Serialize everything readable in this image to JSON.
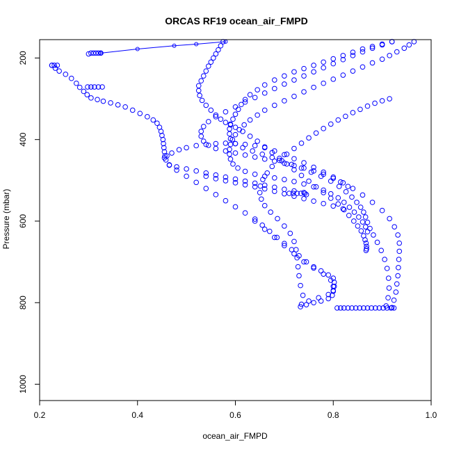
{
  "chart_data": {
    "type": "scatter",
    "title": "ORCAS RF19 ocean_air_FMPD",
    "xlabel": "ocean_air_FMPD",
    "ylabel": "Pressure (mbar)",
    "xlim": [
      0.2,
      1.0
    ],
    "ylim": [
      1040,
      155
    ],
    "y_axis_inverted": true,
    "x_ticks": [
      0.2,
      0.4,
      0.6,
      0.8,
      1.0
    ],
    "x_tick_labels": [
      "0.2",
      "0.4",
      "0.6",
      "0.8",
      "1.0"
    ],
    "y_ticks": [
      200,
      400,
      600,
      800,
      1000
    ],
    "y_tick_labels": [
      "200",
      "400",
      "600",
      "800",
      "1000"
    ],
    "grid": false,
    "legend": "none",
    "marker": "open-circle",
    "color": "#0000ff",
    "series": [
      {
        "style": "points",
        "x": [
          0.225,
          0.232,
          0.24,
          0.253,
          0.265,
          0.275,
          0.282,
          0.29,
          0.297,
          0.305,
          0.318,
          0.33,
          0.345,
          0.36,
          0.375,
          0.39,
          0.405,
          0.42,
          0.432,
          0.44,
          0.445,
          0.448,
          0.45,
          0.452,
          0.453,
          0.454,
          0.455,
          0.456,
          0.458,
          0.465,
          0.48,
          0.5,
          0.52,
          0.54,
          0.56,
          0.58,
          0.6,
          0.62,
          0.64,
          0.655,
          0.67,
          0.685,
          0.7,
          0.715,
          0.73,
          0.745,
          0.76,
          0.775,
          0.79,
          0.8,
          0.802,
          0.802,
          0.8,
          0.79,
          0.77,
          0.75,
          0.735
        ],
        "y": [
          218,
          225,
          232,
          240,
          250,
          262,
          272,
          282,
          290,
          298,
          302,
          306,
          310,
          315,
          320,
          328,
          336,
          344,
          352,
          360,
          370,
          380,
          390,
          400,
          410,
          420,
          430,
          440,
          450,
          462,
          475,
          490,
          505,
          520,
          535,
          550,
          565,
          580,
          595,
          610,
          625,
          640,
          655,
          670,
          685,
          700,
          712,
          722,
          732,
          740,
          750,
          760,
          770,
          780,
          788,
          796,
          804
        ]
      },
      {
        "style": "points",
        "x": [
          0.455,
          0.46,
          0.47,
          0.485,
          0.5,
          0.52,
          0.54,
          0.56,
          0.58,
          0.6,
          0.62,
          0.64,
          0.66,
          0.68,
          0.7,
          0.72,
          0.74,
          0.76,
          0.78,
          0.8,
          0.815,
          0.83
        ],
        "y": [
          445,
          440,
          433,
          425,
          420,
          415,
          412,
          410,
          409,
          410,
          412,
          415,
          420,
          428,
          437,
          447,
          457,
          468,
          480,
          492,
          504,
          515
        ]
      },
      {
        "style": "points",
        "x": [
          0.575,
          0.57,
          0.565,
          0.56,
          0.555,
          0.55,
          0.545,
          0.54,
          0.535,
          0.53,
          0.525,
          0.525,
          0.527,
          0.532,
          0.54,
          0.55,
          0.56,
          0.57,
          0.58,
          0.59,
          0.6,
          0.615,
          0.63,
          0.645,
          0.66,
          0.675,
          0.69,
          0.705,
          0.72,
          0.735,
          0.75,
          0.765,
          0.78,
          0.795,
          0.81,
          0.822,
          0.832,
          0.842,
          0.85,
          0.857,
          0.862,
          0.865,
          0.867,
          0.868,
          0.868,
          0.867
        ],
        "y": [
          160,
          170,
          180,
          190,
          200,
          210,
          220,
          232,
          244,
          256,
          268,
          280,
          292,
          304,
          316,
          328,
          340,
          350,
          358,
          364,
          370,
          380,
          392,
          404,
          418,
          432,
          446,
          460,
          474,
          488,
          502,
          516,
          530,
          544,
          558,
          572,
          586,
          600,
          612,
          624,
          636,
          646,
          654,
          662,
          668,
          672
        ]
      },
      {
        "style": "points",
        "x": [
          0.965,
          0.955,
          0.945,
          0.93,
          0.915,
          0.9,
          0.88,
          0.86,
          0.84,
          0.82,
          0.8,
          0.78,
          0.76,
          0.74,
          0.72,
          0.7,
          0.68,
          0.66,
          0.645,
          0.63,
          0.618,
          0.608,
          0.6,
          0.594,
          0.59,
          0.588,
          0.588,
          0.59,
          0.595,
          0.605,
          0.62,
          0.64,
          0.66,
          0.68,
          0.7,
          0.72,
          0.74,
          0.76,
          0.78,
          0.795,
          0.81,
          0.822,
          0.833,
          0.843,
          0.852,
          0.86,
          0.866,
          0.87
        ],
        "y": [
          160,
          168,
          176,
          185,
          194,
          203,
          212,
          222,
          232,
          242,
          252,
          262,
          272,
          283,
          294,
          305,
          316,
          328,
          340,
          352,
          364,
          376,
          388,
          400,
          412,
          424,
          436,
          448,
          460,
          470,
          478,
          485,
          490,
          494,
          498,
          503,
          509,
          516,
          524,
          533,
          543,
          554,
          566,
          578,
          590,
          602,
          614,
          626
        ]
      },
      {
        "style": "points",
        "x": [
          0.92,
          0.9,
          0.88,
          0.86,
          0.84,
          0.82,
          0.8,
          0.78,
          0.76,
          0.74,
          0.72,
          0.7,
          0.68,
          0.66,
          0.64,
          0.62,
          0.6,
          0.58,
          0.56,
          0.545,
          0.535,
          0.53,
          0.53,
          0.535,
          0.545,
          0.56,
          0.58,
          0.6,
          0.62,
          0.64,
          0.66,
          0.68,
          0.7,
          0.72,
          0.74,
          0.76,
          0.78,
          0.8,
          0.82,
          0.84,
          0.86,
          0.88,
          0.9,
          0.915,
          0.925,
          0.932,
          0.935,
          0.935,
          0.934,
          0.933,
          0.932,
          0.93,
          0.928,
          0.924,
          0.92
        ],
        "y": [
          160,
          168,
          176,
          185,
          194,
          204,
          214,
          224,
          234,
          244,
          254,
          264,
          275,
          286,
          297,
          308,
          320,
          332,
          344,
          356,
          368,
          380,
          392,
          404,
          414,
          422,
          428,
          433,
          438,
          443,
          448,
          453,
          458,
          464,
          470,
          477,
          485,
          495,
          506,
          520,
          536,
          554,
          574,
          594,
          614,
          634,
          654,
          674,
          694,
          714,
          734,
          754,
          774,
          794,
          812
        ]
      },
      {
        "style": "points",
        "x": [
          0.92,
          0.9,
          0.88,
          0.86,
          0.84,
          0.82,
          0.8,
          0.78,
          0.76,
          0.74,
          0.72,
          0.7,
          0.68,
          0.66,
          0.645,
          0.63,
          0.62,
          0.612,
          0.606,
          0.6,
          0.595,
          0.59,
          0.588,
          0.588,
          0.59,
          0.6,
          0.615,
          0.635,
          0.655,
          0.675,
          0.695,
          0.715,
          0.735,
          0.755,
          0.775,
          0.795,
          0.812,
          0.826,
          0.838,
          0.848,
          0.856,
          0.862,
          0.866,
          0.87,
          0.875,
          0.882,
          0.89,
          0.898,
          0.905,
          0.91,
          0.913,
          0.914,
          0.912,
          0.908
        ],
        "y": [
          160,
          166,
          172,
          178,
          186,
          194,
          202,
          210,
          218,
          226,
          234,
          244,
          254,
          266,
          278,
          290,
          302,
          314,
          326,
          338,
          350,
          362,
          374,
          386,
          398,
          410,
          420,
          428,
          436,
          444,
          452,
          461,
          470,
          480,
          490,
          502,
          515,
          528,
          541,
          554,
          566,
          578,
          590,
          603,
          618,
          634,
          652,
          672,
          694,
          716,
          740,
          764,
          788,
          808
        ]
      },
      {
        "style": "points",
        "x": [
          0.915,
          0.9,
          0.885,
          0.87,
          0.855,
          0.84,
          0.825,
          0.81,
          0.795,
          0.78,
          0.765,
          0.75,
          0.735,
          0.72,
          0.705,
          0.69,
          0.675,
          0.665,
          0.656,
          0.651,
          0.65,
          0.653,
          0.66,
          0.672,
          0.686,
          0.7,
          0.712,
          0.72,
          0.724,
          0.726,
          0.728,
          0.73,
          0.733,
          0.738
        ],
        "y": [
          300,
          305,
          311,
          318,
          326,
          334,
          343,
          352,
          362,
          373,
          384,
          396,
          409,
          422,
          436,
          451,
          466,
          482,
          498,
          514,
          530,
          546,
          562,
          578,
          594,
          612,
          630,
          650,
          670,
          690,
          712,
          734,
          758,
          782
        ]
      },
      {
        "style": "points",
        "x": [
          0.64,
          0.66,
          0.68,
          0.7,
          0.72,
          0.74,
          0.76,
          0.78,
          0.795,
          0.8,
          0.8,
          0.798,
          0.79,
          0.775,
          0.76,
          0.745,
          0.733
        ],
        "y": [
          600,
          620,
          640,
          660,
          680,
          700,
          715,
          730,
          745,
          760,
          772,
          782,
          790,
          796,
          800,
          805,
          810
        ]
      },
      {
        "style": "points",
        "x": [
          0.808,
          0.815,
          0.822,
          0.83,
          0.838,
          0.846,
          0.854,
          0.862,
          0.87,
          0.878,
          0.886,
          0.894,
          0.902,
          0.91,
          0.918,
          0.924
        ],
        "y": [
          813,
          813,
          813,
          813,
          813,
          813,
          813,
          813,
          813,
          813,
          813,
          813,
          813,
          813,
          813,
          813
        ]
      },
      {
        "style": "points",
        "x": [
          0.465,
          0.48,
          0.5,
          0.52,
          0.54,
          0.56,
          0.58,
          0.6,
          0.62,
          0.64,
          0.66,
          0.68,
          0.7,
          0.72,
          0.74
        ],
        "y": [
          463,
          467,
          472,
          477,
          482,
          487,
          492,
          497,
          502,
          507,
          512,
          517,
          522,
          526,
          530
        ]
      },
      {
        "style": "points",
        "x": [
          0.54,
          0.56,
          0.58,
          0.6,
          0.62,
          0.64,
          0.66,
          0.68,
          0.7,
          0.72,
          0.74,
          0.76,
          0.78,
          0.8,
          0.82
        ],
        "y": [
          490,
          496,
          501,
          506,
          511,
          516,
          521,
          527,
          533,
          539,
          545,
          551,
          557,
          563,
          570
        ]
      },
      {
        "style": "points",
        "x": [
          0.71,
          0.718,
          0.726,
          0.734,
          0.742,
          0.745
        ],
        "y": [
          532,
          532,
          532,
          532,
          532,
          535
        ]
      },
      {
        "style": "points",
        "x": [
          0.298,
          0.305,
          0.312,
          0.32,
          0.328
        ],
        "y": [
          271,
          271,
          271,
          271,
          271
        ]
      },
      {
        "style": "points",
        "x": [
          0.225,
          0.23,
          0.236,
          0.3,
          0.305,
          0.31,
          0.315,
          0.32,
          0.325
        ],
        "y": [
          218,
          218,
          218,
          190,
          188,
          188,
          188,
          188,
          188
        ]
      },
      {
        "style": "line",
        "x": [
          0.325,
          0.4,
          0.475,
          0.52,
          0.58
        ],
        "y": [
          188,
          178,
          170,
          166,
          160
        ]
      }
    ]
  }
}
